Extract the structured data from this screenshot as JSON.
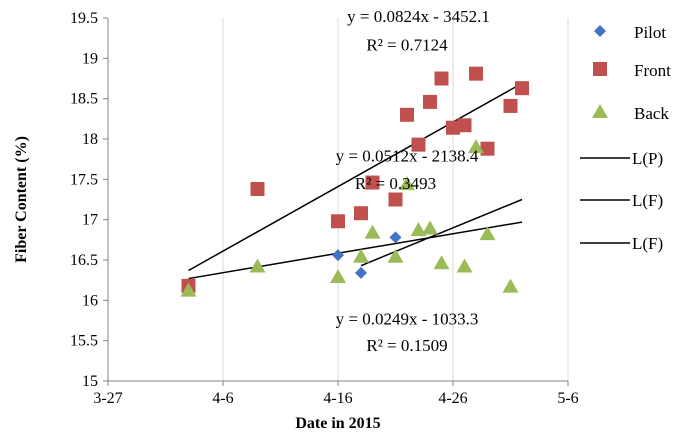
{
  "chart_data": {
    "type": "scatter",
    "xlabel": "Date in 2015",
    "ylabel": "Fiber Content (%)",
    "x_domain": [
      "2015-03-27",
      "2015-05-06"
    ],
    "ylim": [
      15,
      19.5
    ],
    "y_ticks": [
      15,
      15.5,
      16,
      16.5,
      17,
      17.5,
      18,
      18.5,
      19,
      19.5
    ],
    "y_tick_labels": [
      "15",
      "15.5",
      "16",
      "16.5",
      "17",
      "17.5",
      "18",
      "18.5",
      "19",
      "19.5"
    ],
    "x_ticks": [
      "2015-03-27",
      "2015-04-06",
      "2015-04-16",
      "2015-04-26",
      "2015-05-06"
    ],
    "x_tick_labels": [
      "3-27",
      "4-6",
      "4-16",
      "4-26",
      "5-6"
    ],
    "grid": {
      "horizontal": false,
      "vertical": true
    },
    "legend_position": "right",
    "series": [
      {
        "name": "Pilot",
        "marker": "diamond",
        "color": "#4472C4",
        "points": [
          {
            "x": "2015-04-16",
            "y": 16.56
          },
          {
            "x": "2015-04-18",
            "y": 16.34
          },
          {
            "x": "2015-04-21",
            "y": 16.78
          }
        ]
      },
      {
        "name": "Front",
        "marker": "square",
        "color": "#C0504D",
        "points": [
          {
            "x": "2015-04-03",
            "y": 16.18
          },
          {
            "x": "2015-04-09",
            "y": 17.38
          },
          {
            "x": "2015-04-16",
            "y": 16.98
          },
          {
            "x": "2015-04-18",
            "y": 17.08
          },
          {
            "x": "2015-04-19",
            "y": 17.46
          },
          {
            "x": "2015-04-21",
            "y": 17.25
          },
          {
            "x": "2015-04-22",
            "y": 18.3
          },
          {
            "x": "2015-04-23",
            "y": 17.93
          },
          {
            "x": "2015-04-24",
            "y": 18.46
          },
          {
            "x": "2015-04-25",
            "y": 18.75
          },
          {
            "x": "2015-04-26",
            "y": 18.14
          },
          {
            "x": "2015-04-27",
            "y": 18.17
          },
          {
            "x": "2015-04-28",
            "y": 18.81
          },
          {
            "x": "2015-04-29",
            "y": 17.88
          },
          {
            "x": "2015-05-01",
            "y": 18.41
          },
          {
            "x": "2015-05-02",
            "y": 18.63
          }
        ]
      },
      {
        "name": "Back",
        "marker": "triangle",
        "color": "#9BBB59",
        "points": [
          {
            "x": "2015-04-03",
            "y": 16.12
          },
          {
            "x": "2015-04-09",
            "y": 16.42
          },
          {
            "x": "2015-04-16",
            "y": 16.29
          },
          {
            "x": "2015-04-18",
            "y": 16.54
          },
          {
            "x": "2015-04-19",
            "y": 16.84
          },
          {
            "x": "2015-04-21",
            "y": 16.54
          },
          {
            "x": "2015-04-22",
            "y": 17.44
          },
          {
            "x": "2015-04-23",
            "y": 16.87
          },
          {
            "x": "2015-04-24",
            "y": 16.89
          },
          {
            "x": "2015-04-25",
            "y": 16.46
          },
          {
            "x": "2015-04-27",
            "y": 16.42
          },
          {
            "x": "2015-04-28",
            "y": 17.9
          },
          {
            "x": "2015-04-29",
            "y": 16.82
          },
          {
            "x": "2015-05-01",
            "y": 16.17
          }
        ]
      },
      {
        "name": "L(P)",
        "marker": "line",
        "color": "#000000",
        "points": [
          {
            "x": "2015-04-03",
            "y": 16.37
          },
          {
            "x": "2015-05-02",
            "y": 18.69
          }
        ]
      },
      {
        "name": "L(F)",
        "marker": "line",
        "color": "#000000",
        "points": [
          {
            "x": "2015-04-18",
            "y": 16.43
          },
          {
            "x": "2015-05-02",
            "y": 17.25
          }
        ]
      },
      {
        "name": "L(F)",
        "marker": "line",
        "color": "#000000",
        "points": [
          {
            "x": "2015-04-03",
            "y": 16.27
          },
          {
            "x": "2015-05-02",
            "y": 16.97
          }
        ]
      }
    ],
    "annotations": [
      {
        "id": "eq1",
        "text": "y = 0.0824x - 3452.1",
        "at": {
          "x": "2015-04-23",
          "y": 19.45
        }
      },
      {
        "id": "r1",
        "text": "R² = 0.7124",
        "at": {
          "x": "2015-04-22",
          "y": 19.1
        }
      },
      {
        "id": "eq2",
        "text": "y = 0.0512x - 2138.4",
        "at": {
          "x": "2015-04-22",
          "y": 17.72
        }
      },
      {
        "id": "r2",
        "text": "R² = 0.3493",
        "at": {
          "x": "2015-04-21",
          "y": 17.38
        }
      },
      {
        "id": "eq3",
        "text": "y = 0.0249x - 1033.3",
        "at": {
          "x": "2015-04-22",
          "y": 15.7
        }
      },
      {
        "id": "r3",
        "text": "R² = 0.1509",
        "at": {
          "x": "2015-04-22",
          "y": 15.37
        }
      }
    ]
  }
}
